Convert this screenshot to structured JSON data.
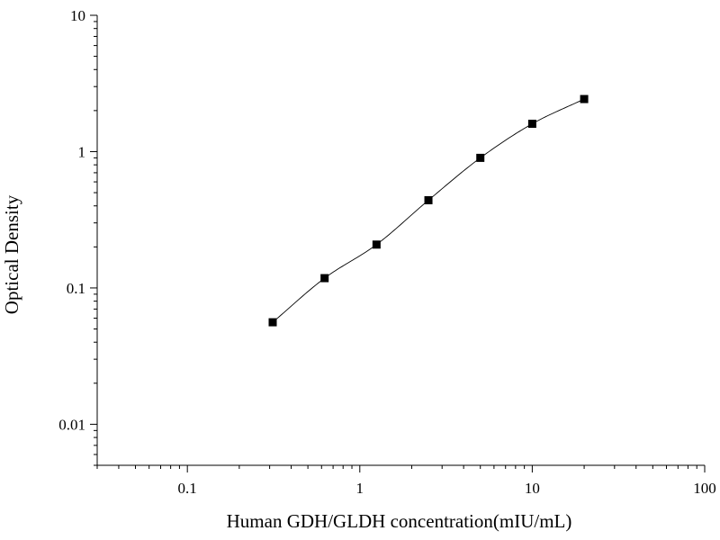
{
  "chart_data": {
    "type": "scatter",
    "title": "",
    "xlabel": "Human GDH/GLDH concentration(mIU/mL)",
    "ylabel": "Optical Density",
    "x_scale": "log",
    "y_scale": "log",
    "xlim": [
      0.03,
      100
    ],
    "ylim": [
      0.005,
      10
    ],
    "x_ticks": [
      0.1,
      1,
      10,
      100
    ],
    "x_tick_labels": [
      "0.1",
      "1",
      "10",
      "100"
    ],
    "y_ticks": [
      0.01,
      0.1,
      1,
      10
    ],
    "y_tick_labels": [
      "0.01",
      "0.1",
      "1",
      "10"
    ],
    "grid": false,
    "legend": "none",
    "series": [
      {
        "marker": "square",
        "color": "#000000",
        "fit_curve": true,
        "x": [
          0.3125,
          0.625,
          1.25,
          2.5,
          5,
          10,
          20
        ],
        "y": [
          0.056,
          0.118,
          0.208,
          0.44,
          0.9,
          1.6,
          2.43
        ]
      }
    ]
  }
}
